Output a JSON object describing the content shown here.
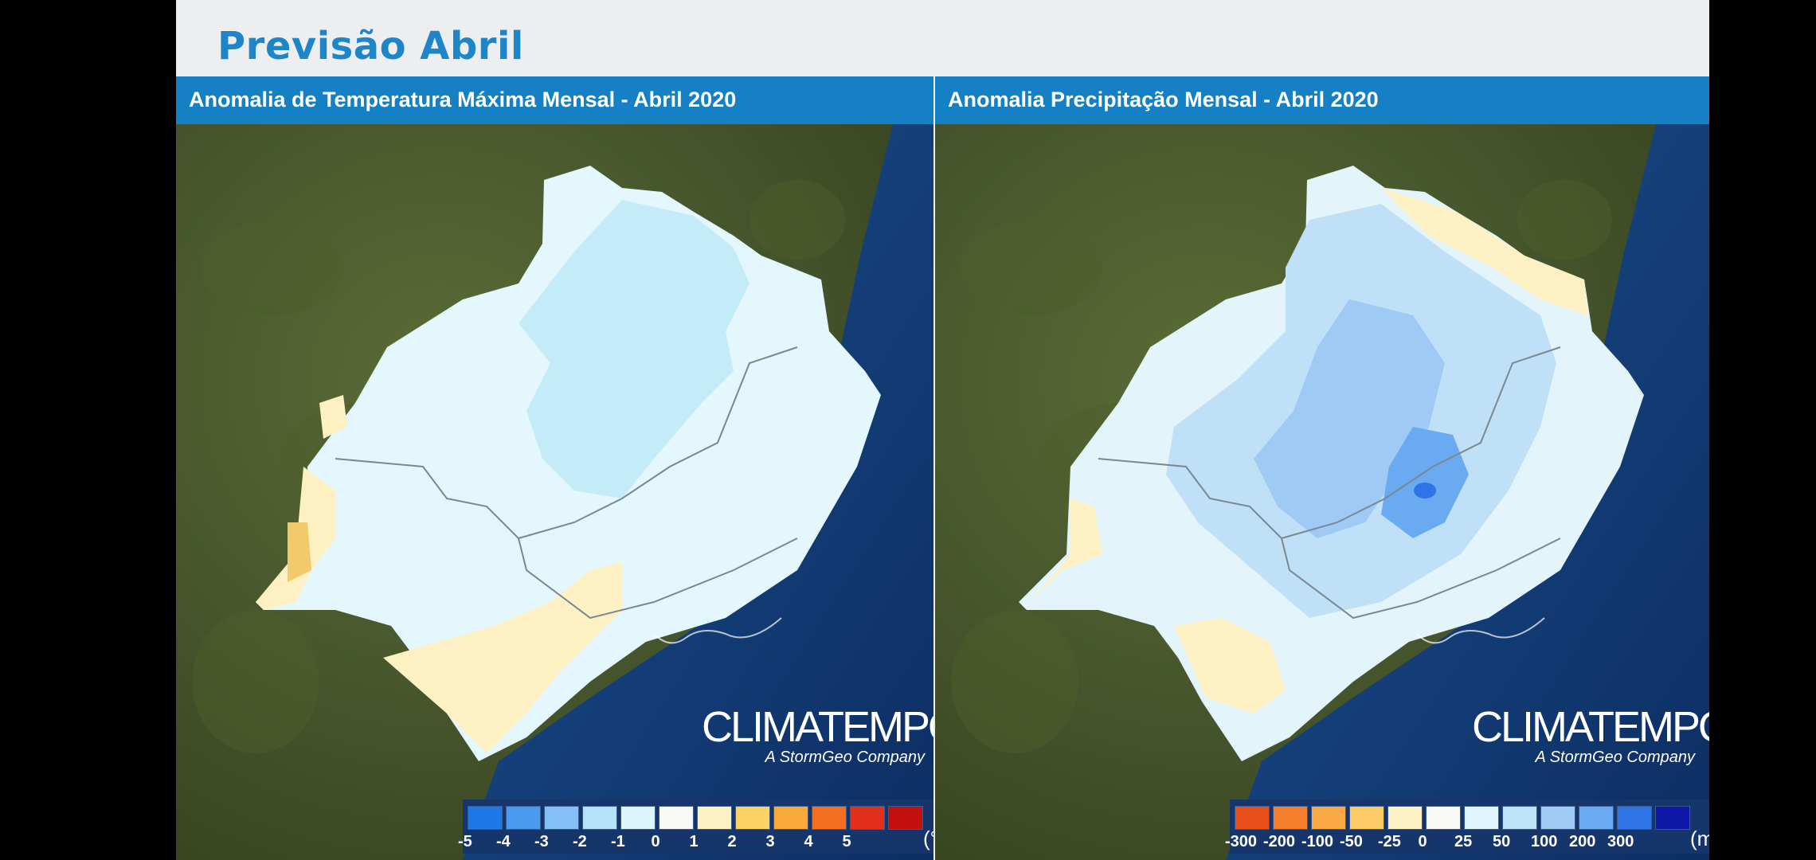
{
  "slide": {
    "title": "Previsão Abril"
  },
  "panels": [
    {
      "title": "Anomalia de Temperatura Máxima Mensal - Abril 2020",
      "logo": {
        "main": "CLIMATEMPO",
        "sub": "A StormGeo Company"
      },
      "legend": {
        "unit": "(°C)",
        "items": [
          {
            "label": "-5",
            "color": "#1f78e8"
          },
          {
            "label": "-4",
            "color": "#4a9af0"
          },
          {
            "label": "-3",
            "color": "#84c0f5"
          },
          {
            "label": "-2",
            "color": "#b5e2f8"
          },
          {
            "label": "-1",
            "color": "#dcf4fb"
          },
          {
            "label": "0",
            "color": "#f8f8f4"
          },
          {
            "label": "1",
            "color": "#fdf1c4"
          },
          {
            "label": "2",
            "color": "#fcd267"
          },
          {
            "label": "3",
            "color": "#f9a93a"
          },
          {
            "label": "4",
            "color": "#f46f22"
          },
          {
            "label": "5",
            "color": "#e33018"
          },
          {
            "label": "",
            "color": "#c40f0f"
          }
        ]
      }
    },
    {
      "title": "Anomalia Precipitação Mensal - Abril 2020",
      "logo": {
        "main": "CLIMATEMPO",
        "sub": "A StormGeo Company"
      },
      "legend": {
        "unit": "(mm)",
        "items": [
          {
            "label": "-300",
            "color": "#e8501a"
          },
          {
            "label": "-200",
            "color": "#f47f2c"
          },
          {
            "label": "-100",
            "color": "#f9a945"
          },
          {
            "label": "-50",
            "color": "#fccb66"
          },
          {
            "label": "-25",
            "color": "#fdf0c2"
          },
          {
            "label": "0",
            "color": "#f8f8f4"
          },
          {
            "label": "25",
            "color": "#dff4fb"
          },
          {
            "label": "50",
            "color": "#bfe3f8"
          },
          {
            "label": "100",
            "color": "#9fcaf5"
          },
          {
            "label": "200",
            "color": "#6aaaf0"
          },
          {
            "label": "300",
            "color": "#2f74e6"
          },
          {
            "label": "",
            "color": "#0f17a8"
          }
        ]
      }
    }
  ]
}
